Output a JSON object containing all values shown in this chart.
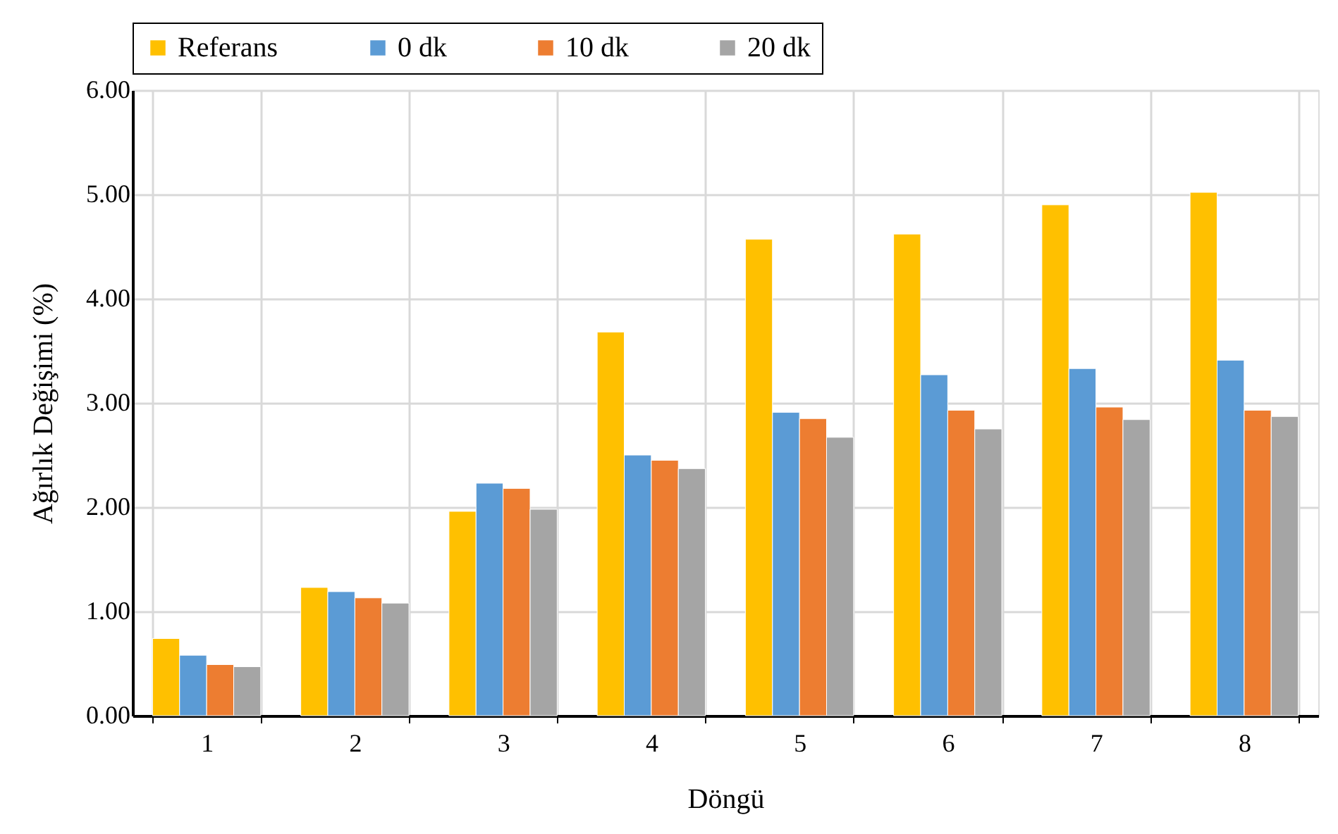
{
  "chart_data": {
    "type": "bar",
    "xlabel": "Döngü",
    "ylabel": "Ağırlık Değişimi (%)",
    "categories": [
      "1",
      "2",
      "3",
      "4",
      "5",
      "6",
      "7",
      "8"
    ],
    "series": [
      {
        "name": "Referans",
        "color": "#ffc000",
        "values": [
          0.74,
          1.23,
          1.96,
          3.68,
          4.57,
          4.62,
          4.9,
          5.02
        ]
      },
      {
        "name": "0 dk",
        "color": "#5b9bd5",
        "values": [
          0.58,
          1.19,
          2.23,
          2.5,
          2.91,
          3.27,
          3.33,
          3.41
        ]
      },
      {
        "name": "10 dk",
        "color": "#ed7d31",
        "values": [
          0.49,
          1.13,
          2.18,
          2.45,
          2.85,
          2.93,
          2.96,
          2.93
        ]
      },
      {
        "name": "20 dk",
        "color": "#a5a5a5",
        "values": [
          0.47,
          1.08,
          1.98,
          2.37,
          2.67,
          2.75,
          2.84,
          2.87
        ]
      }
    ],
    "ylim": [
      0,
      6
    ],
    "yticks": [
      {
        "value": 0,
        "label": "0.00"
      },
      {
        "value": 1,
        "label": "1.00"
      },
      {
        "value": 2,
        "label": "2.00"
      },
      {
        "value": 3,
        "label": "3.00"
      },
      {
        "value": 4,
        "label": "4.00"
      },
      {
        "value": 5,
        "label": "5.00"
      },
      {
        "value": 6,
        "label": "6.00"
      }
    ],
    "grid": true,
    "legend": "top"
  }
}
